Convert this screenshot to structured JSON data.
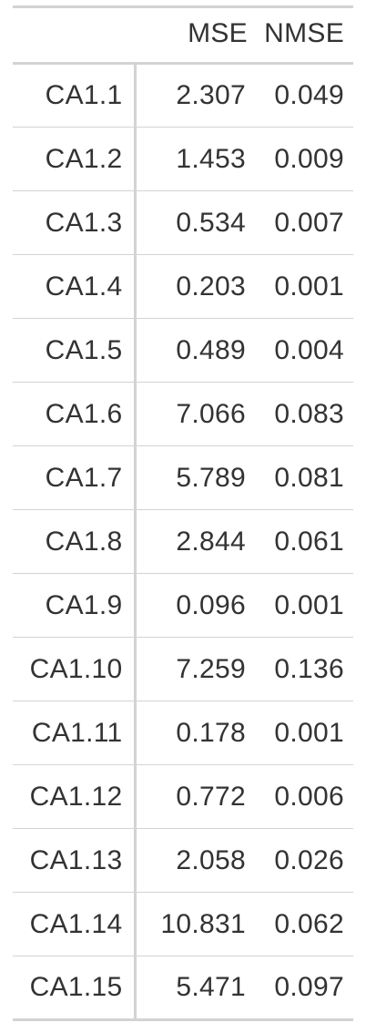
{
  "table": {
    "headers": [
      "",
      "MSE",
      "NMSE"
    ],
    "rows": [
      {
        "label": "CA1.1",
        "mse": "2.307",
        "nmse": "0.049"
      },
      {
        "label": "CA1.2",
        "mse": "1.453",
        "nmse": "0.009"
      },
      {
        "label": "CA1.3",
        "mse": "0.534",
        "nmse": "0.007"
      },
      {
        "label": "CA1.4",
        "mse": "0.203",
        "nmse": "0.001"
      },
      {
        "label": "CA1.5",
        "mse": "0.489",
        "nmse": "0.004"
      },
      {
        "label": "CA1.6",
        "mse": "7.066",
        "nmse": "0.083"
      },
      {
        "label": "CA1.7",
        "mse": "5.789",
        "nmse": "0.081"
      },
      {
        "label": "CA1.8",
        "mse": "2.844",
        "nmse": "0.061"
      },
      {
        "label": "CA1.9",
        "mse": "0.096",
        "nmse": "0.001"
      },
      {
        "label": "CA1.10",
        "mse": "7.259",
        "nmse": "0.136"
      },
      {
        "label": "CA1.11",
        "mse": "0.178",
        "nmse": "0.001"
      },
      {
        "label": "CA1.12",
        "mse": "0.772",
        "nmse": "0.006"
      },
      {
        "label": "CA1.13",
        "mse": "2.058",
        "nmse": "0.026"
      },
      {
        "label": "CA1.14",
        "mse": "10.831",
        "nmse": "0.062"
      },
      {
        "label": "CA1.15",
        "mse": "5.471",
        "nmse": "0.097"
      }
    ]
  },
  "colors": {
    "text": "#333333",
    "rule": "#d3d3d3",
    "background": "#ffffff"
  }
}
